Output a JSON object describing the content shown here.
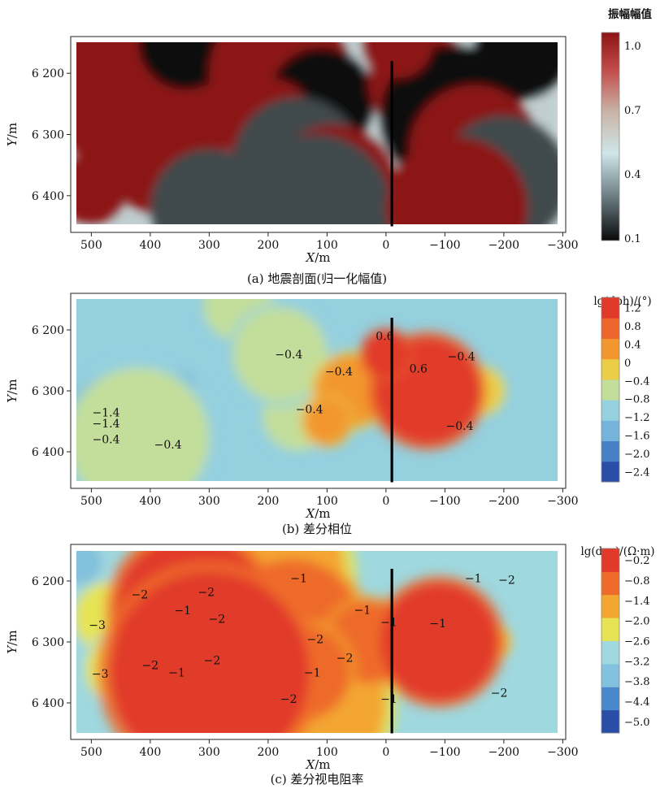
{
  "colors": {
    "seismic": [
      "#0a0a0a",
      "#6f8288",
      "#cfe6ea",
      "#c9b3a6",
      "#c24c4a",
      "#8c1414"
    ],
    "contour": [
      "#2a4ea7",
      "#4a88cc",
      "#83c2de",
      "#9fd8df",
      "#e6e455",
      "#f3a630",
      "#ee6b2a",
      "#e13a2a"
    ],
    "well": "#000000"
  },
  "chart_data": [
    {
      "id": "a",
      "type": "heatmap",
      "subplot": "seismic-section",
      "caption": "(a) 地震剖面(归一化幅值)",
      "xlabel": "X/m",
      "ylabel": "Y/m",
      "xlim": [
        535,
        -305
      ],
      "ylim": [
        6460,
        6140
      ],
      "xticks": [
        500,
        400,
        300,
        200,
        100,
        0,
        -100,
        -200,
        -300
      ],
      "yticks": [
        6200,
        6300,
        6400
      ],
      "ytick_labels": [
        "6 200",
        "6 300",
        "6 400"
      ],
      "colorbar": {
        "title": "振幅幅值",
        "ticks": [
          1.0,
          0.7,
          0.4,
          0.1
        ],
        "tick_labels": [
          "1.0",
          "0.7",
          "0.4",
          "0.1"
        ],
        "range": [
          0.1,
          1.05
        ]
      },
      "well": {
        "x": -10,
        "y_top": 6180,
        "y_bottom": 6450
      },
      "events": [
        {
          "x": 420,
          "y": 6265,
          "value": 0.05,
          "rx": 90,
          "ry": 18
        },
        {
          "x": 420,
          "y": 6230,
          "value": 1.0,
          "rx": 150,
          "ry": 15
        },
        {
          "x": 380,
          "y": 6325,
          "value": 1.0,
          "rx": 110,
          "ry": 12
        },
        {
          "x": 480,
          "y": 6185,
          "value": 1.0,
          "rx": 70,
          "ry": 10
        },
        {
          "x": 340,
          "y": 6150,
          "value": 0.05,
          "rx": 80,
          "ry": 9
        },
        {
          "x": 500,
          "y": 6390,
          "value": 1.0,
          "rx": 60,
          "ry": 11
        },
        {
          "x": 180,
          "y": 6200,
          "value": 1.0,
          "rx": 120,
          "ry": 11
        },
        {
          "x": 110,
          "y": 6245,
          "value": 0.05,
          "rx": 90,
          "ry": 10
        },
        {
          "x": 200,
          "y": 6285,
          "value": 1.0,
          "rx": 80,
          "ry": 10
        },
        {
          "x": 150,
          "y": 6345,
          "value": 0.15,
          "rx": 110,
          "ry": 9
        },
        {
          "x": 90,
          "y": 6390,
          "value": 1.0,
          "rx": 110,
          "ry": 10
        },
        {
          "x": 120,
          "y": 6425,
          "value": 0.15,
          "rx": 130,
          "ry": 8
        },
        {
          "x": -60,
          "y": 6215,
          "value": 1.0,
          "rx": 90,
          "ry": 11
        },
        {
          "x": -110,
          "y": 6270,
          "value": 0.05,
          "rx": 120,
          "ry": 11
        },
        {
          "x": -230,
          "y": 6165,
          "value": 0.05,
          "rx": 80,
          "ry": 9
        },
        {
          "x": -150,
          "y": 6325,
          "value": 1.0,
          "rx": 110,
          "ry": 10
        },
        {
          "x": -200,
          "y": 6375,
          "value": 0.15,
          "rx": 110,
          "ry": 9
        },
        {
          "x": -120,
          "y": 6420,
          "value": 1.0,
          "rx": 120,
          "ry": 9
        },
        {
          "x": -20,
          "y": 6150,
          "value": 1.0,
          "rx": 60,
          "ry": 8
        },
        {
          "x": 300,
          "y": 6420,
          "value": 0.15,
          "rx": 100,
          "ry": 8
        }
      ]
    },
    {
      "id": "b",
      "type": "heatmap",
      "subplot": "differential-phase",
      "caption": "(b) 差分相位",
      "xlabel": "X/m",
      "ylabel": "Y/m",
      "xlim": [
        535,
        -305
      ],
      "ylim": [
        6460,
        6140
      ],
      "xticks": [
        500,
        400,
        300,
        200,
        100,
        0,
        -100,
        -200,
        -300
      ],
      "yticks": [
        6200,
        6300,
        6400
      ],
      "ytick_labels": [
        "6 200",
        "6 300",
        "6 400"
      ],
      "colorbar": {
        "title": "lg(dph)/(°)",
        "levels": [
          -2.4,
          -2.0,
          -1.6,
          -1.2,
          -0.8,
          -0.4,
          0,
          0.4,
          0.8,
          1.2
        ],
        "tick_labels": [
          "1.2",
          "0.8",
          "0.4",
          "0",
          "−0.4",
          "−0.8",
          "−1.2",
          "−1.6",
          "−2.0",
          "−2.4"
        ]
      },
      "background_level": -0.9,
      "well": {
        "x": -10,
        "y_top": 6180,
        "y_bottom": 6450
      },
      "contour_labels": [
        {
          "x": 165,
          "y": 6240,
          "text": "−0.4"
        },
        {
          "x": 80,
          "y": 6268,
          "text": "−0.4"
        },
        {
          "x": 130,
          "y": 6330,
          "text": "−0.4"
        },
        {
          "x": 475,
          "y": 6335,
          "text": "−1.4"
        },
        {
          "x": 475,
          "y": 6353,
          "text": "−1.4"
        },
        {
          "x": 475,
          "y": 6379,
          "text": "−0.4"
        },
        {
          "x": 370,
          "y": 6388,
          "text": "−0.4"
        },
        {
          "x": -55,
          "y": 6263,
          "text": "0.6"
        },
        {
          "x": -128,
          "y": 6243,
          "text": "−0.4"
        },
        {
          "x": -125,
          "y": 6357,
          "text": "−0.4"
        },
        {
          "x": 2,
          "y": 6210,
          "text": "0.6"
        }
      ],
      "anomalies": [
        {
          "x": -70,
          "y": 6300,
          "value": 1.0,
          "rx": 90,
          "ry": 160
        },
        {
          "x": 60,
          "y": 6300,
          "value": 0.2,
          "rx": 60,
          "ry": 170
        },
        {
          "x": -160,
          "y": 6300,
          "value": -0.2,
          "rx": 40,
          "ry": 140
        },
        {
          "x": 150,
          "y": 6340,
          "value": -0.5,
          "rx": 60,
          "ry": 40
        },
        {
          "x": 100,
          "y": 6350,
          "value": 0.3,
          "rx": 40,
          "ry": 20
        },
        {
          "x": 0,
          "y": 6240,
          "value": 1.2,
          "rx": 40,
          "ry": 40
        },
        {
          "x": 420,
          "y": 6378,
          "value": -0.5,
          "rx": 120,
          "ry": 6
        },
        {
          "x": 480,
          "y": 6345,
          "value": -1.6,
          "rx": 60,
          "ry": 7
        },
        {
          "x": 440,
          "y": 6420,
          "value": -1.7,
          "rx": 20,
          "ry": 8
        },
        {
          "x": 250,
          "y": 6160,
          "value": -0.5,
          "rx": 60,
          "ry": 10
        },
        {
          "x": 180,
          "y": 6240,
          "value": -0.5,
          "rx": 80,
          "ry": 8
        },
        {
          "x": 350,
          "y": 6295,
          "value": -1.4,
          "rx": 25,
          "ry": 5
        }
      ]
    },
    {
      "id": "c",
      "type": "heatmap",
      "subplot": "differential-apparent-resistivity",
      "caption": "(c) 差分视电阻率",
      "xlabel": "X/m",
      "ylabel": "Y/m",
      "xlim": [
        535,
        -305
      ],
      "ylim": [
        6460,
        6140
      ],
      "xticks": [
        500,
        400,
        300,
        200,
        100,
        0,
        -100,
        -200,
        -300
      ],
      "yticks": [
        6200,
        6300,
        6400
      ],
      "ytick_labels": [
        "6 200",
        "6 300",
        "6 400"
      ],
      "colorbar": {
        "title": "lg(dps)/(Ω·m)",
        "levels": [
          -5.0,
          -4.4,
          -3.8,
          -3.2,
          -2.6,
          -2.0,
          -1.4,
          -0.8,
          -0.2
        ],
        "tick_labels": [
          "−0.2",
          "−0.8",
          "−1.4",
          "−2.0",
          "−2.6",
          "−3.2",
          "−3.8",
          "−4.4",
          "−5.0"
        ]
      },
      "background_level": -3.0,
      "well": {
        "x": -10,
        "y_top": 6180,
        "y_bottom": 6450
      },
      "contour_labels": [
        {
          "x": 148,
          "y": 6195,
          "text": "−1"
        },
        {
          "x": 418,
          "y": 6222,
          "text": "−2"
        },
        {
          "x": 305,
          "y": 6218,
          "text": "−2"
        },
        {
          "x": 345,
          "y": 6248,
          "text": "−1"
        },
        {
          "x": 287,
          "y": 6262,
          "text": "−2"
        },
        {
          "x": 490,
          "y": 6272,
          "text": "−3"
        },
        {
          "x": 40,
          "y": 6247,
          "text": "−1"
        },
        {
          "x": -5,
          "y": 6267,
          "text": "−1"
        },
        {
          "x": 120,
          "y": 6295,
          "text": "−2"
        },
        {
          "x": 70,
          "y": 6326,
          "text": "−2"
        },
        {
          "x": 295,
          "y": 6330,
          "text": "−2"
        },
        {
          "x": 400,
          "y": 6338,
          "text": "−2"
        },
        {
          "x": 485,
          "y": 6352,
          "text": "−3"
        },
        {
          "x": 355,
          "y": 6350,
          "text": "−1"
        },
        {
          "x": 125,
          "y": 6350,
          "text": "−1"
        },
        {
          "x": 165,
          "y": 6393,
          "text": "−2"
        },
        {
          "x": -5,
          "y": 6393,
          "text": "−1"
        },
        {
          "x": -88,
          "y": 6269,
          "text": "−1"
        },
        {
          "x": -148,
          "y": 6195,
          "text": "−1"
        },
        {
          "x": -205,
          "y": 6198,
          "text": "−2"
        },
        {
          "x": -192,
          "y": 6383,
          "text": "−2"
        }
      ],
      "anomalies": [
        {
          "x": -90,
          "y": 6300,
          "value": -0.3,
          "rx": 100,
          "ry": 170
        },
        {
          "x": 30,
          "y": 6300,
          "value": -1.0,
          "rx": 70,
          "ry": 170
        },
        {
          "x": -180,
          "y": 6300,
          "value": -1.7,
          "rx": 30,
          "ry": 160
        },
        {
          "x": 330,
          "y": 6250,
          "value": -0.8,
          "rx": 130,
          "ry": 12
        },
        {
          "x": 300,
          "y": 6350,
          "value": -0.8,
          "rx": 170,
          "ry": 12
        },
        {
          "x": 140,
          "y": 6350,
          "value": -0.9,
          "rx": 80,
          "ry": 12
        },
        {
          "x": 240,
          "y": 6190,
          "value": -1.7,
          "rx": 170,
          "ry": 30
        },
        {
          "x": 150,
          "y": 6400,
          "value": -1.8,
          "rx": 150,
          "ry": 25
        },
        {
          "x": 470,
          "y": 6260,
          "value": -2.3,
          "rx": 60,
          "ry": 30
        },
        {
          "x": 450,
          "y": 6345,
          "value": -2.2,
          "rx": 60,
          "ry": 20
        },
        {
          "x": 160,
          "y": 6280,
          "value": -1.2,
          "rx": 120,
          "ry": 14
        },
        {
          "x": 520,
          "y": 6170,
          "value": -3.5,
          "rx": 30,
          "ry": 25
        }
      ]
    }
  ]
}
